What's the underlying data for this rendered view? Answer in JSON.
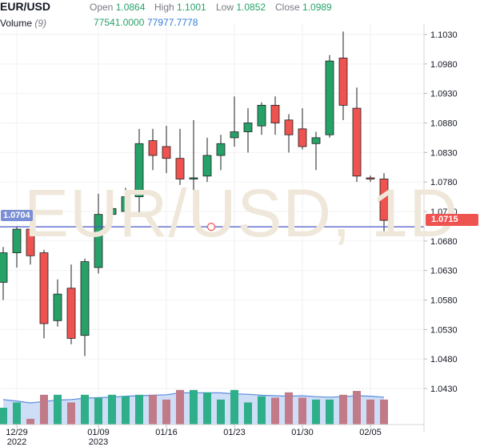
{
  "header": {
    "symbol": "EUR/USD",
    "open_label": "Open",
    "open_value": "1.0864",
    "high_label": "High",
    "high_value": "1.1001",
    "low_label": "Low",
    "low_value": "1.0852",
    "close_label": "Close",
    "close_value": "1.0989",
    "volume_label": "Volume",
    "volume_period": "(9)",
    "volume_value": "77541.0000",
    "volume_ma_value": "77977.7778"
  },
  "watermark": "EUR/USD, 1D",
  "price_tags": {
    "crosshair_price": "1.0704",
    "last_price": "1.0715"
  },
  "colors": {
    "up": "#26a269",
    "down": "#ef5350",
    "vol_up": "#2fae8a",
    "vol_down": "#c07a88",
    "crosshair": "#4a56c8",
    "volume_ma": "#5b8de0"
  },
  "chart_data": {
    "type": "candlestick",
    "y_ticks": [
      "1.1030",
      "1.0980",
      "1.0930",
      "1.0880",
      "1.0830",
      "1.0780",
      "1.0730",
      "1.0680",
      "1.0630",
      "1.0580",
      "1.0530",
      "1.0480",
      "1.0430"
    ],
    "ylim": [
      1.042,
      1.104
    ],
    "x_ticks": [
      {
        "index": 1,
        "label": "12/29",
        "sub": "2022"
      },
      {
        "index": 7,
        "label": "01/09",
        "sub": "2023"
      },
      {
        "index": 12,
        "label": "01/16",
        "sub": ""
      },
      {
        "index": 17,
        "label": "01/23",
        "sub": ""
      },
      {
        "index": 22,
        "label": "01/30",
        "sub": ""
      },
      {
        "index": 27,
        "label": "02/05",
        "sub": ""
      }
    ],
    "crosshair_price": 1.0704,
    "candles": [
      {
        "o": 1.061,
        "h": 1.067,
        "l": 1.058,
        "c": 1.066
      },
      {
        "o": 1.066,
        "h": 1.0705,
        "l": 1.0635,
        "c": 1.07
      },
      {
        "o": 1.07,
        "h": 1.071,
        "l": 1.064,
        "c": 1.0655
      },
      {
        "o": 1.066,
        "h": 1.0665,
        "l": 1.0515,
        "c": 1.054
      },
      {
        "o": 1.0545,
        "h": 1.0615,
        "l": 1.0535,
        "c": 1.059
      },
      {
        "o": 1.06,
        "h": 1.064,
        "l": 1.0505,
        "c": 1.0515
      },
      {
        "o": 1.052,
        "h": 1.065,
        "l": 1.0485,
        "c": 1.0645
      },
      {
        "o": 1.0635,
        "h": 1.076,
        "l": 1.0625,
        "c": 1.0725
      },
      {
        "o": 1.0725,
        "h": 1.074,
        "l": 1.071,
        "c": 1.0735
      },
      {
        "o": 1.073,
        "h": 1.077,
        "l": 1.0725,
        "c": 1.0755
      },
      {
        "o": 1.0755,
        "h": 1.087,
        "l": 1.0725,
        "c": 1.0845
      },
      {
        "o": 1.085,
        "h": 1.087,
        "l": 1.08,
        "c": 1.0825
      },
      {
        "o": 1.084,
        "h": 1.0875,
        "l": 1.0795,
        "c": 1.082
      },
      {
        "o": 1.082,
        "h": 1.087,
        "l": 1.0775,
        "c": 1.0785
      },
      {
        "o": 1.0785,
        "h": 1.0885,
        "l": 1.076,
        "c": 1.0787
      },
      {
        "o": 1.079,
        "h": 1.0855,
        "l": 1.078,
        "c": 1.0825
      },
      {
        "o": 1.0825,
        "h": 1.086,
        "l": 1.08,
        "c": 1.0845
      },
      {
        "o": 1.0855,
        "h": 1.0925,
        "l": 1.084,
        "c": 1.0865
      },
      {
        "o": 1.0865,
        "h": 1.0905,
        "l": 1.083,
        "c": 1.088
      },
      {
        "o": 1.0875,
        "h": 1.0915,
        "l": 1.086,
        "c": 1.091
      },
      {
        "o": 1.091,
        "h": 1.0925,
        "l": 1.086,
        "c": 1.088
      },
      {
        "o": 1.0885,
        "h": 1.0895,
        "l": 1.083,
        "c": 1.086
      },
      {
        "o": 1.087,
        "h": 1.0905,
        "l": 1.0835,
        "c": 1.084
      },
      {
        "o": 1.0845,
        "h": 1.0865,
        "l": 1.08,
        "c": 1.0855
      },
      {
        "o": 1.086,
        "h": 1.0995,
        "l": 1.0855,
        "c": 1.0985
      },
      {
        "o": 1.099,
        "h": 1.1035,
        "l": 1.0885,
        "c": 1.091
      },
      {
        "o": 1.0905,
        "h": 1.094,
        "l": 1.078,
        "c": 1.079
      },
      {
        "o": 1.0787,
        "h": 1.0791,
        "l": 1.078,
        "c": 1.0785
      },
      {
        "o": 1.0785,
        "h": 1.0795,
        "l": 1.0695,
        "c": 1.0715
      }
    ],
    "volume": [
      0.35,
      0.46,
      0.12,
      0.62,
      0.62,
      0.46,
      0.62,
      0.56,
      0.62,
      0.59,
      0.62,
      0.62,
      0.52,
      0.72,
      0.72,
      0.67,
      0.52,
      0.72,
      0.46,
      0.59,
      0.56,
      0.67,
      0.56,
      0.52,
      0.52,
      0.62,
      0.7,
      0.52,
      0.52
    ],
    "volume_ma": [
      0.52,
      0.49,
      0.45,
      0.48,
      0.51,
      0.52,
      0.55,
      0.56,
      0.57,
      0.59,
      0.6,
      0.61,
      0.62,
      0.66,
      0.66,
      0.66,
      0.66,
      0.64,
      0.63,
      0.61,
      0.6,
      0.59,
      0.6,
      0.58,
      0.57,
      0.58,
      0.6,
      0.59,
      0.57
    ]
  }
}
